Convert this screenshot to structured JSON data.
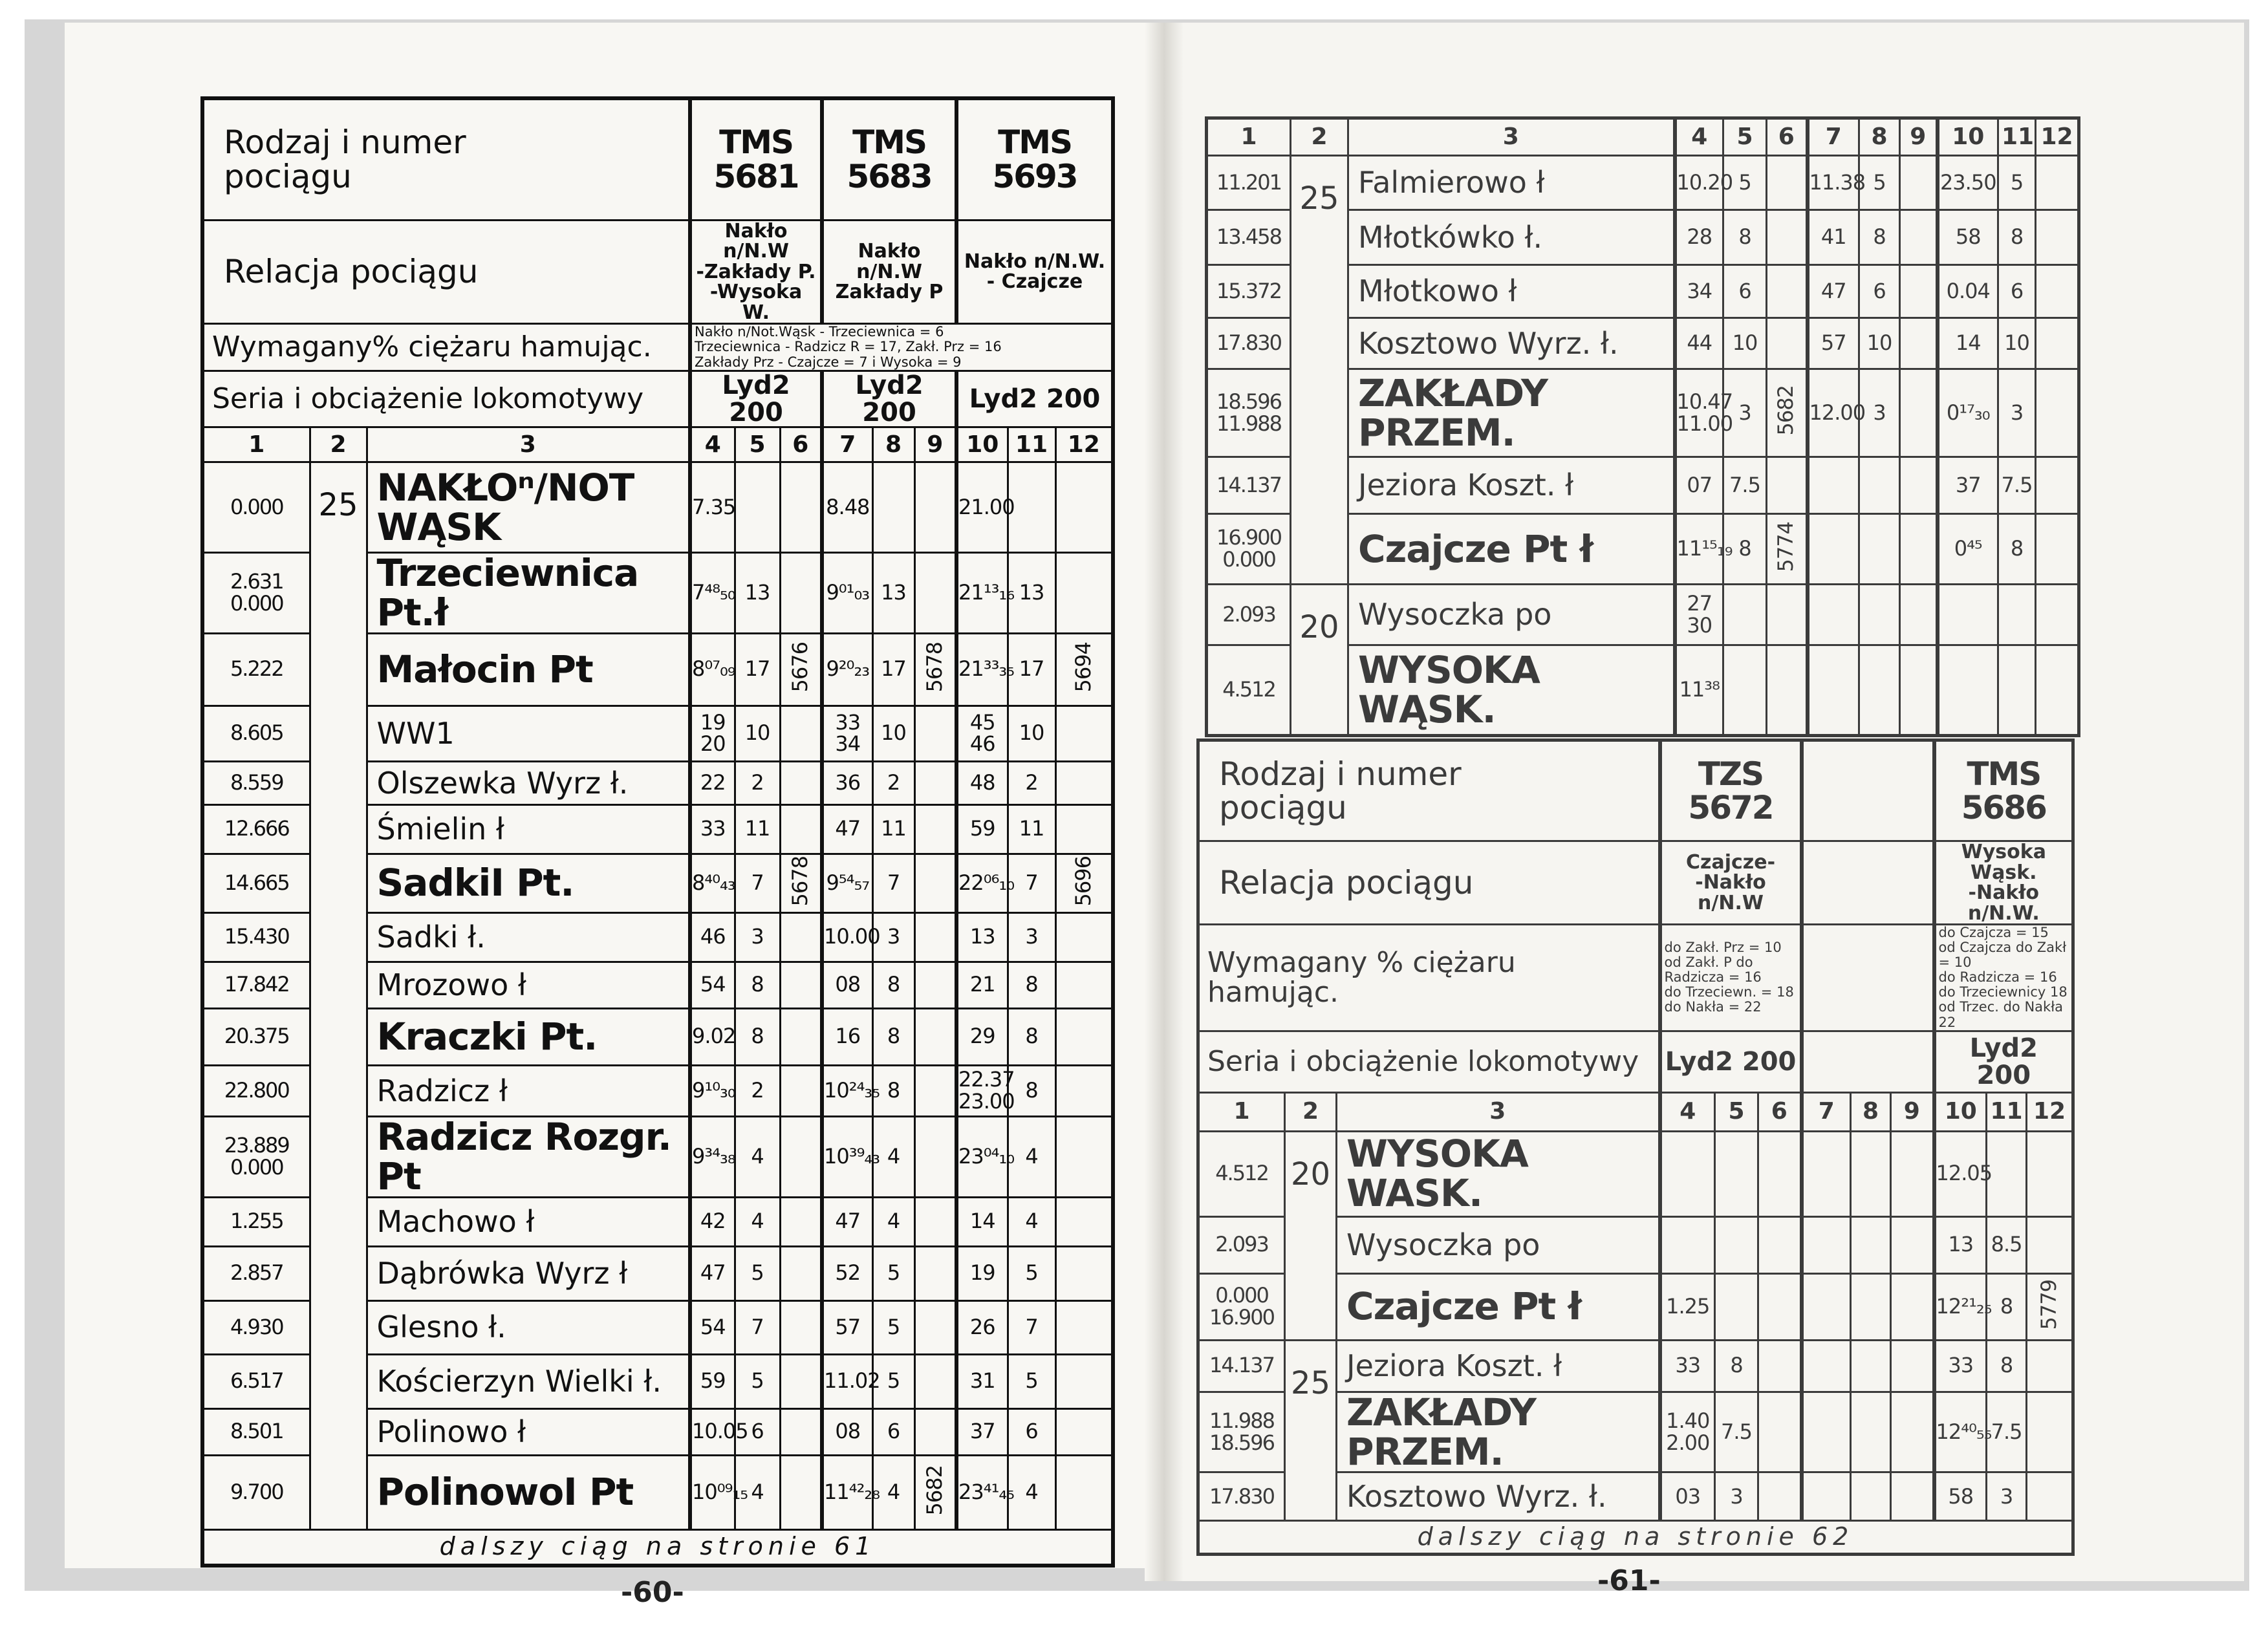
{
  "left": {
    "header": {
      "train_label": "Rodzaj i numer\npociągu",
      "trains": [
        "TMS 5681",
        "TMS 5683",
        "TMS 5693"
      ],
      "relation_label": "Relacja pociągu",
      "relations": [
        "Nakło n/N.W\n-Zakłady P.\n-Wysoka W.",
        "Nakło n/N.W\nZakłady P",
        "Nakło n/N.W.\n- Czajcze"
      ],
      "brake_label": "Wymagany% ciężaru hamując.",
      "brake": [
        "Nakło n/Not.Wąsk - Trzeciewnica = 6\nTrzeciewnica - Radzicz R = 17, Zakł. Prz = 16\nZakłady Prz - Czajcze = 7 i Wysoka = 9"
      ],
      "loco_label": "Seria i obciążenie lokomotywy",
      "locos": [
        "Lyd2 200",
        "Lyd2 200",
        "Lyd2 200"
      ]
    },
    "col_numbers": [
      "1",
      "2",
      "3",
      "4",
      "5",
      "6",
      "7",
      "8",
      "9",
      "10",
      "11",
      "12"
    ],
    "rows": [
      {
        "km": "0.000",
        "grade": "25",
        "station": "NAKŁOⁿ/NOT WĄSK",
        "big": true,
        "c": [
          "7.35",
          "",
          "",
          "8.48",
          "",
          "",
          "21.00",
          "",
          ""
        ]
      },
      {
        "km": "2.631\n0.000",
        "grade": "25",
        "station": "Trzeciewnica Pt.ł",
        "big": true,
        "c": [
          "7⁴⁸₅₀",
          "13",
          "",
          "9⁰¹₀₃",
          "13",
          "",
          "21¹³₁₆",
          "13",
          ""
        ]
      },
      {
        "km": "5.222",
        "grade": "25",
        "station": "Małocin Pt",
        "big": true,
        "c": [
          "8⁰⁷₀₉",
          "17",
          "5676",
          "9²⁰₂₃",
          "17",
          "5678",
          "21³³₃₅",
          "17",
          "5694"
        ]
      },
      {
        "km": "8.605",
        "grade": "25",
        "station": "WW1",
        "big": false,
        "c": [
          "19\n20",
          "10",
          "",
          "33\n34",
          "10",
          "",
          "45\n46",
          "10",
          ""
        ]
      },
      {
        "km": "8.559",
        "grade": "25",
        "station": "Olszewka Wyrz ł.",
        "big": false,
        "c": [
          "22",
          "2",
          "",
          "36",
          "2",
          "",
          "48",
          "2",
          ""
        ]
      },
      {
        "km": "12.666",
        "grade": "25",
        "station": "Śmielin ł",
        "big": false,
        "c": [
          "33",
          "11",
          "",
          "47",
          "11",
          "",
          "59",
          "11",
          ""
        ]
      },
      {
        "km": "14.665",
        "grade": "25",
        "station": "SadkiI Pt.",
        "big": true,
        "c": [
          "8⁴⁰₄₃",
          "7",
          "5678",
          "9⁵⁴₅₇",
          "7",
          "",
          "22⁰⁶₁₀",
          "7",
          "5696"
        ]
      },
      {
        "km": "15.430",
        "grade": "25",
        "station": "Sadki ł.",
        "big": false,
        "c": [
          "46",
          "3",
          "",
          "10.00",
          "3",
          "",
          "13",
          "3",
          ""
        ]
      },
      {
        "km": "17.842",
        "grade": "25",
        "station": "Mrozowo ł",
        "big": false,
        "c": [
          "54",
          "8",
          "",
          "08",
          "8",
          "",
          "21",
          "8",
          ""
        ]
      },
      {
        "km": "20.375",
        "grade": "25",
        "station": "Kraczki Pt.",
        "big": true,
        "c": [
          "9.02",
          "8",
          "",
          "16",
          "8",
          "",
          "29",
          "8",
          ""
        ]
      },
      {
        "km": "22.800",
        "grade": "25",
        "station": "Radzicz ł",
        "big": false,
        "c": [
          "9¹⁰₃₀",
          "2",
          "",
          "10²⁴₃₅",
          "8",
          "",
          "22.37\n23.00",
          "8",
          ""
        ]
      },
      {
        "km": "23.889\n0.000",
        "grade": "25",
        "station": "Radzicz Rozgr. Pt",
        "big": true,
        "c": [
          "9³⁴₃₈",
          "4",
          "",
          "10³⁹₄₃",
          "4",
          "",
          "23⁰⁴₁₀",
          "4",
          ""
        ]
      },
      {
        "km": "1.255",
        "grade": "25",
        "station": "Machowo ł",
        "big": false,
        "c": [
          "42",
          "4",
          "",
          "47",
          "4",
          "",
          "14",
          "4",
          ""
        ]
      },
      {
        "km": "2.857",
        "grade": "25",
        "station": "Dąbrówka Wyrz ł",
        "big": false,
        "c": [
          "47",
          "5",
          "",
          "52",
          "5",
          "",
          "19",
          "5",
          ""
        ]
      },
      {
        "km": "4.930",
        "grade": "25",
        "station": "Glesno ł.",
        "big": false,
        "c": [
          "54",
          "7",
          "",
          "57",
          "5",
          "",
          "26",
          "7",
          ""
        ]
      },
      {
        "km": "6.517",
        "grade": "25",
        "station": "Kościerzyn Wielki ł.",
        "big": false,
        "c": [
          "59",
          "5",
          "",
          "11.02",
          "5",
          "",
          "31",
          "5",
          ""
        ]
      },
      {
        "km": "8.501",
        "grade": "25",
        "station": "Polinowo ł",
        "big": false,
        "c": [
          "10.05",
          "6",
          "",
          "08",
          "6",
          "",
          "37",
          "6",
          ""
        ]
      },
      {
        "km": "9.700",
        "grade": "25",
        "station": "PolinowoI Pt",
        "big": true,
        "c": [
          "10⁰⁹₁₅",
          "4",
          "",
          "11⁴²₂₈",
          "4",
          "5682",
          "23⁴¹₄₅",
          "4",
          ""
        ]
      }
    ],
    "footer": "dalszy ciąg na stronie 61",
    "page_number": "-60-"
  },
  "right_top": {
    "col_numbers": [
      "1",
      "2",
      "3",
      "4",
      "5",
      "6",
      "7",
      "8",
      "9",
      "10",
      "11",
      "12"
    ],
    "rows": [
      {
        "km": "11.201",
        "grade": "25",
        "station": "Falmierowo ł",
        "big": false,
        "c": [
          "10.20",
          "5",
          "",
          "11.38",
          "5",
          "",
          "23.50",
          "5",
          ""
        ]
      },
      {
        "km": "13.458",
        "grade": "25",
        "station": "Młotkówko ł.",
        "big": false,
        "c": [
          "28",
          "8",
          "",
          "41",
          "8",
          "",
          "58",
          "8",
          ""
        ]
      },
      {
        "km": "15.372",
        "grade": "25",
        "station": "Młotkowo ł",
        "big": false,
        "c": [
          "34",
          "6",
          "",
          "47",
          "6",
          "",
          "0.04",
          "6",
          ""
        ]
      },
      {
        "km": "17.830",
        "grade": "25",
        "station": "Kosztowo Wyrz. ł.",
        "big": false,
        "c": [
          "44",
          "10",
          "",
          "57",
          "10",
          "",
          "14",
          "10",
          ""
        ]
      },
      {
        "km": "18.596\n11.988",
        "grade": "25",
        "station": "ZAKŁADY PRZEM.",
        "big": true,
        "c": [
          "10.47\n11.00",
          "3",
          "5682",
          "12.00",
          "3",
          "",
          "0¹⁷₃₀",
          "3",
          ""
        ]
      },
      {
        "km": "14.137",
        "grade": "25",
        "station": "Jeziora Koszt. ł",
        "big": false,
        "c": [
          "07",
          "7.5",
          "",
          "",
          "",
          "",
          "37",
          "7.5",
          ""
        ]
      },
      {
        "km": "16.900\n0.000",
        "grade": "25",
        "station": "Czajcze Pt ł",
        "big": true,
        "c": [
          "11¹⁵₁₉",
          "8",
          "5774",
          "",
          "",
          "",
          "0⁴⁵",
          "8",
          ""
        ]
      },
      {
        "km": "2.093",
        "grade": "20",
        "station": "Wysoczka po",
        "big": false,
        "c": [
          "27\n30",
          "",
          "",
          "",
          "",
          "",
          "",
          "",
          ""
        ]
      },
      {
        "km": "4.512",
        "grade": "20",
        "station": "WYSOKA WĄSK.",
        "big": true,
        "c": [
          "11³⁸",
          "",
          "",
          "",
          "",
          "",
          "",
          "",
          ""
        ]
      }
    ]
  },
  "right_bottom": {
    "header": {
      "train_label": "Rodzaj i numer\npociągu",
      "trains": [
        "TZS 5672",
        "",
        "TMS 5686"
      ],
      "relation_label": "Relacja pociągu",
      "relations": [
        "Czajcze-\n-Nakło n/N.W",
        "",
        "Wysoka Wąsk.\n-Nakło n/N.W."
      ],
      "brake_label": "Wymagany % ciężaru hamując.",
      "brake": [
        "do Zakł. Prz = 10\nod Zakł. P do\nRadzicza = 16\ndo Trzeciewn. = 18\ndo Nakła = 22",
        "",
        "do Czajcza = 15\nod Czajcza do Zakł = 10\ndo Radzicza = 16\ndo Trzeciewnicy 18\nod Trzec. do Nakła 22"
      ],
      "loco_label": "Seria i obciążenie lokomotywy",
      "locos": [
        "Lyd2 200",
        "",
        "Lyd2 200"
      ]
    },
    "col_numbers": [
      "1",
      "2",
      "3",
      "4",
      "5",
      "6",
      "7",
      "8",
      "9",
      "10",
      "11",
      "12"
    ],
    "rows": [
      {
        "km": "4.512",
        "grade": "20",
        "station": "WYSOKA WASK.",
        "big": true,
        "c": [
          "",
          "",
          "",
          "",
          "",
          "",
          "12.05",
          "",
          ""
        ]
      },
      {
        "km": "2.093",
        "grade": "20",
        "station": "Wysoczka po",
        "big": false,
        "c": [
          "",
          "",
          "",
          "",
          "",
          "",
          "13",
          "8.5",
          ""
        ]
      },
      {
        "km": "0.000\n16.900",
        "grade": "20",
        "station": "Czajcze Pt ł",
        "big": true,
        "c": [
          "1.25",
          "",
          "",
          "",
          "",
          "",
          "12²¹₂₅",
          "8",
          "5779"
        ]
      },
      {
        "km": "14.137",
        "grade": "25",
        "station": "Jeziora Koszt. ł",
        "big": false,
        "c": [
          "33",
          "8",
          "",
          "",
          "",
          "",
          "33",
          "8",
          ""
        ]
      },
      {
        "km": "11.988\n18.596",
        "grade": "25",
        "station": "ZAKŁADY PRZEM.",
        "big": true,
        "c": [
          "1.40\n2.00",
          "7.5",
          "",
          "",
          "",
          "",
          "12⁴⁰₅₅",
          "7.5",
          ""
        ]
      },
      {
        "km": "17.830",
        "grade": "25",
        "station": "Kosztowo Wyrz. ł.",
        "big": false,
        "c": [
          "03",
          "3",
          "",
          "",
          "",
          "",
          "58",
          "3",
          ""
        ]
      }
    ],
    "footer": "dalszy ciąg na stronie 62",
    "page_number": "-61-"
  }
}
